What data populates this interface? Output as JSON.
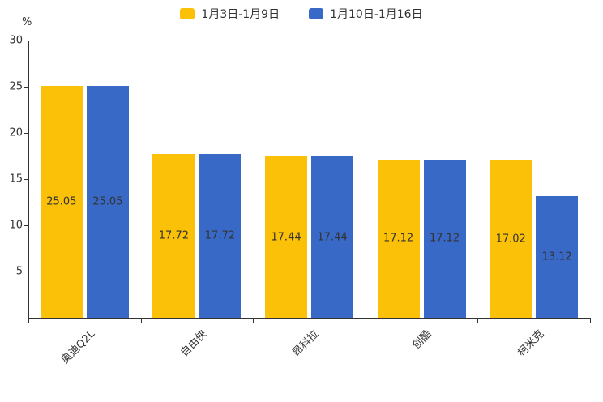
{
  "colors": {
    "background": "#ffffff",
    "axis": "#333333",
    "label": "#333333",
    "series_yellow": "#FBC108",
    "series_blue": "#3969C6"
  },
  "chart_data": {
    "type": "bar",
    "title": "",
    "categories": [
      "奥迪Q2L",
      "自由侠",
      "昂科拉",
      "创酷",
      "柯米克"
    ],
    "series": [
      {
        "name": "1月3日-1月9日",
        "color": "#FBC108",
        "values": [
          25.05,
          17.72,
          17.44,
          17.12,
          17.02
        ]
      },
      {
        "name": "1月10日-1月16日",
        "color": "#3969C6",
        "values": [
          25.05,
          17.72,
          17.44,
          17.12,
          13.12
        ]
      }
    ],
    "xlabel": "",
    "ylabel": "%",
    "ylim": [
      0,
      30
    ],
    "yticks": [
      5,
      10,
      15,
      20,
      25,
      30
    ],
    "grid": false,
    "legend_position": "top",
    "data_labels": "inside-middle"
  }
}
